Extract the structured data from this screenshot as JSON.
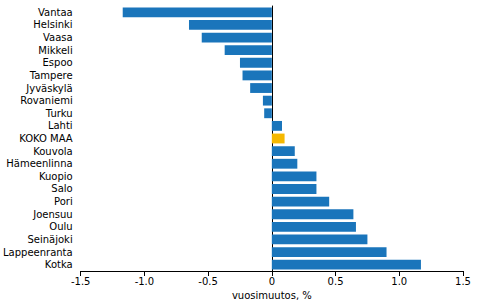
{
  "chart_data": {
    "type": "bar",
    "orientation": "horizontal",
    "x_label": "vuosimuutos, %",
    "categories": [
      "Vantaa",
      "Helsinki",
      "Vaasa",
      "Mikkeli",
      "Espoo",
      "Tampere",
      "Jyväskylä",
      "Rovaniemi",
      "Turku",
      "Lahti",
      "KOKO MAA",
      "Kouvola",
      "Hämeenlinna",
      "Kuopio",
      "Salo",
      "Pori",
      "Joensuu",
      "Oulu",
      "Seinäjoki",
      "Lappeenranta",
      "Kotka"
    ],
    "values": [
      -1.17,
      -0.65,
      -0.55,
      -0.37,
      -0.25,
      -0.23,
      -0.17,
      -0.07,
      -0.06,
      0.08,
      0.1,
      0.18,
      0.2,
      0.35,
      0.35,
      0.45,
      0.64,
      0.66,
      0.75,
      0.9,
      1.17
    ],
    "colors": [
      "#1a75bb",
      "#1a75bb",
      "#1a75bb",
      "#1a75bb",
      "#1a75bb",
      "#1a75bb",
      "#1a75bb",
      "#1a75bb",
      "#1a75bb",
      "#1a75bb",
      "#f5b800",
      "#1a75bb",
      "#1a75bb",
      "#1a75bb",
      "#1a75bb",
      "#1a75bb",
      "#1a75bb",
      "#1a75bb",
      "#1a75bb",
      "#1a75bb",
      "#1a75bb"
    ],
    "xlim": [
      -1.5,
      1.5
    ],
    "xticks": [
      -1.5,
      {
        "value": -1,
        "label": "-1.0"
      },
      -0.5,
      0,
      0.5,
      {
        "value": 1,
        "label": "1.0"
      },
      1.5
    ],
    "grid": false
  }
}
